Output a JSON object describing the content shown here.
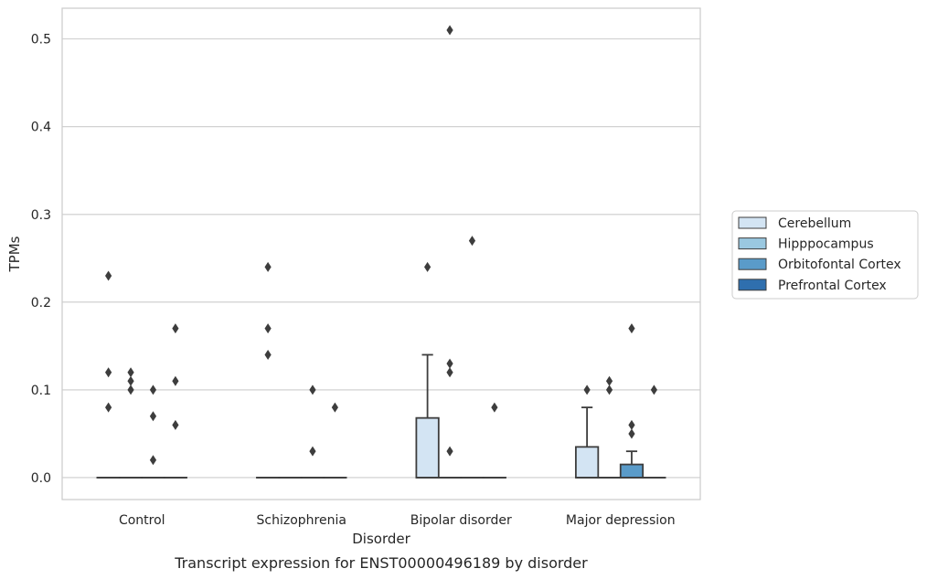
{
  "chart_data": {
    "type": "box",
    "caption": "Transcript expression for ENST00000496189 by disorder",
    "xlabel": "Disorder",
    "ylabel": "TPMs",
    "ylim": [
      -0.025,
      0.535
    ],
    "yticks": [
      0.0,
      0.1,
      0.2,
      0.3,
      0.4,
      0.5
    ],
    "ytick_labels": [
      "0.0",
      "0.1",
      "0.2",
      "0.3",
      "0.4",
      "0.5"
    ],
    "grid": "horizontal",
    "legend_position": "right",
    "categories": [
      "Control",
      "Schizophrenia",
      "Bipolar disorder",
      "Major depression"
    ],
    "series": [
      {
        "name": "Cerebellum",
        "color": "#d3e4f3",
        "boxes": [
          {
            "q1": 0,
            "median": 0,
            "q3": 0,
            "whislo": 0,
            "whishi": 0,
            "fliers": [
              0.23,
              0.12,
              0.08
            ]
          },
          {
            "q1": 0,
            "median": 0,
            "q3": 0,
            "whislo": 0,
            "whishi": 0,
            "fliers": [
              0.24,
              0.17,
              0.14
            ]
          },
          {
            "q1": 0,
            "median": 0,
            "q3": 0.068,
            "whislo": 0,
            "whishi": 0.14,
            "fliers": [
              0.24
            ]
          },
          {
            "q1": 0,
            "median": 0,
            "q3": 0.035,
            "whislo": 0,
            "whishi": 0.08,
            "fliers": [
              0.1
            ]
          }
        ]
      },
      {
        "name": "Hipppocampus",
        "color": "#9ac8e0",
        "boxes": [
          {
            "q1": 0,
            "median": 0,
            "q3": 0,
            "whislo": 0,
            "whishi": 0,
            "fliers": [
              0.12,
              0.11,
              0.1
            ]
          },
          {
            "q1": 0,
            "median": 0,
            "q3": 0,
            "whislo": 0,
            "whishi": 0,
            "fliers": []
          },
          {
            "q1": 0,
            "median": 0,
            "q3": 0,
            "whislo": 0,
            "whishi": 0,
            "fliers": [
              0.51,
              0.13,
              0.12,
              0.03
            ]
          },
          {
            "q1": 0,
            "median": 0,
            "q3": 0,
            "whislo": 0,
            "whishi": 0,
            "fliers": [
              0.11,
              0.1
            ]
          }
        ]
      },
      {
        "name": "Orbitofontal Cortex",
        "color": "#5a9bc9",
        "boxes": [
          {
            "q1": 0,
            "median": 0,
            "q3": 0,
            "whislo": 0,
            "whishi": 0,
            "fliers": [
              0.1,
              0.07,
              0.02
            ]
          },
          {
            "q1": 0,
            "median": 0,
            "q3": 0,
            "whislo": 0,
            "whishi": 0,
            "fliers": [
              0.1,
              0.03
            ]
          },
          {
            "q1": 0,
            "median": 0,
            "q3": 0,
            "whislo": 0,
            "whishi": 0,
            "fliers": [
              0.27
            ]
          },
          {
            "q1": 0,
            "median": 0,
            "q3": 0.015,
            "whislo": 0,
            "whishi": 0.03,
            "fliers": [
              0.17,
              0.06,
              0.05
            ]
          }
        ]
      },
      {
        "name": "Prefrontal Cortex",
        "color": "#2f6fae",
        "boxes": [
          {
            "q1": 0,
            "median": 0,
            "q3": 0,
            "whislo": 0,
            "whishi": 0,
            "fliers": [
              0.17,
              0.11,
              0.06
            ]
          },
          {
            "q1": 0,
            "median": 0,
            "q3": 0,
            "whislo": 0,
            "whishi": 0,
            "fliers": [
              0.08
            ]
          },
          {
            "q1": 0,
            "median": 0,
            "q3": 0,
            "whislo": 0,
            "whishi": 0,
            "fliers": [
              0.08
            ]
          },
          {
            "q1": 0,
            "median": 0,
            "q3": 0,
            "whislo": 0,
            "whishi": 0,
            "fliers": [
              0.1
            ]
          }
        ]
      }
    ]
  }
}
